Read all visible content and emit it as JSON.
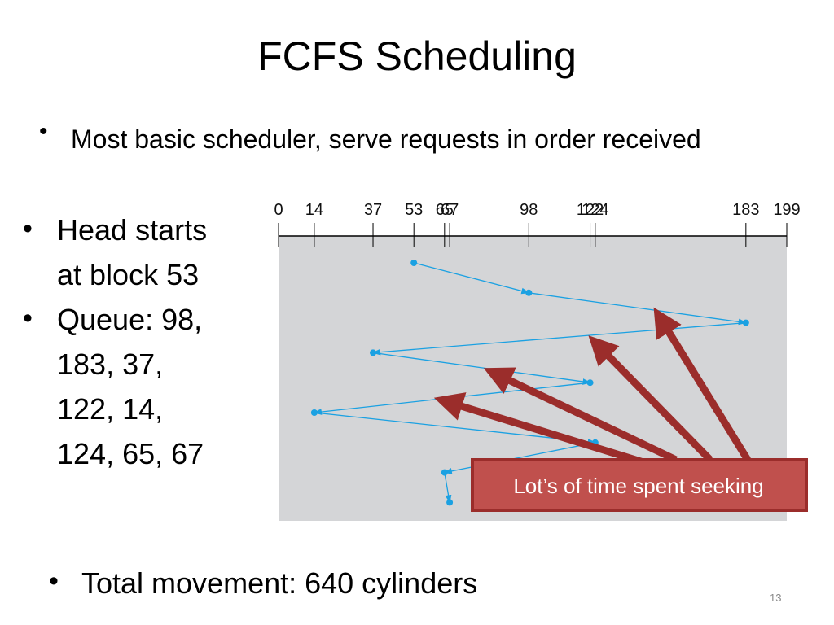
{
  "title": "FCFS Scheduling",
  "bullets": [
    "Most basic scheduler, serve requests in order received"
  ],
  "left_bullets": [
    [
      "Head starts",
      "at block 53"
    ],
    [
      "Queue: 98,",
      "183, 37,",
      "122, 14,",
      "124, 65, 67"
    ]
  ],
  "diagram": {
    "ticks": [
      0,
      14,
      37,
      53,
      65,
      67,
      98,
      122,
      124,
      183,
      199
    ],
    "axis_range": [
      0,
      199
    ],
    "sequence": [
      53,
      98,
      183,
      37,
      122,
      14,
      124,
      65,
      67
    ],
    "callout": "Lot’s of time spent seeking"
  },
  "bottom_bullet": "Total movement: 640 cylinders",
  "page_number": "13"
}
